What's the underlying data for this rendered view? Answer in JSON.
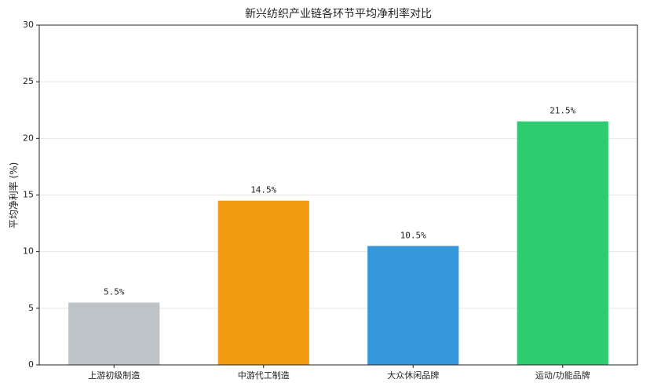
{
  "chart_data": {
    "type": "bar",
    "title": "新兴纺织产业链各环节平均净利率对比",
    "y_label": "平均净利率 (%)",
    "categories": [
      "上游初级制造",
      "中游代工制造",
      "大众休闲品牌",
      "运动/功能品牌"
    ],
    "values": [
      5.5,
      14.5,
      10.5,
      21.5
    ],
    "value_labels": [
      "5.5%",
      "14.5%",
      "10.5%",
      "21.5%"
    ],
    "colors": [
      "#bdc3c7",
      "#f39c12",
      "#3498db",
      "#2ecc71"
    ],
    "ylim": [
      0,
      30
    ],
    "yticks": [
      0,
      5,
      10,
      15,
      20,
      25,
      30
    ],
    "grid": true
  }
}
